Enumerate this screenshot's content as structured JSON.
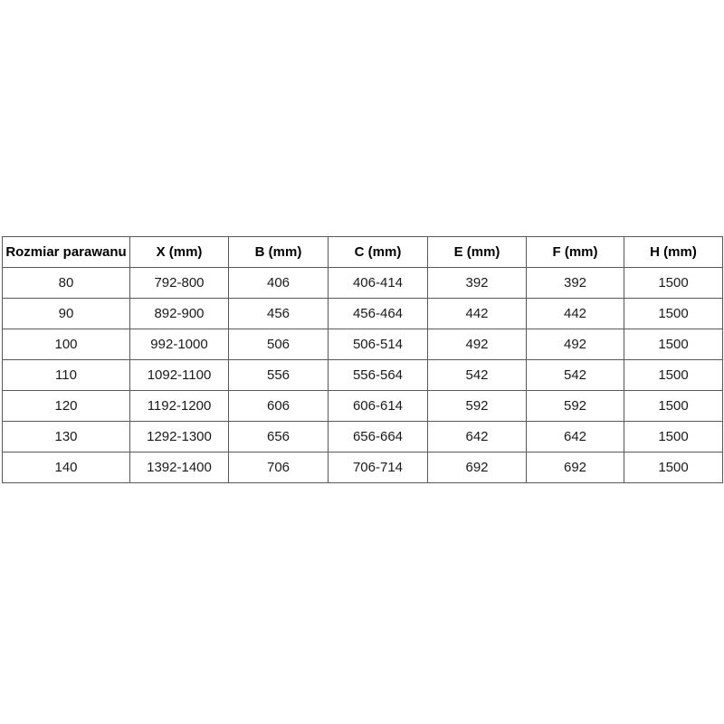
{
  "page": {
    "background_color": "#ffffff"
  },
  "table": {
    "name": "dimensions-table",
    "border_color": "#595959",
    "text_color": "#1a1a1a",
    "headers": [
      "Rozmiar parawanu",
      "X (mm)",
      "B (mm)",
      "C (mm)",
      "E (mm)",
      "F (mm)",
      "H (mm)"
    ],
    "rows": [
      [
        "80",
        "792-800",
        "406",
        "406-414",
        "392",
        "392",
        "1500"
      ],
      [
        "90",
        "892-900",
        "456",
        "456-464",
        "442",
        "442",
        "1500"
      ],
      [
        "100",
        "992-1000",
        "506",
        "506-514",
        "492",
        "492",
        "1500"
      ],
      [
        "110",
        "1092-1100",
        "556",
        "556-564",
        "542",
        "542",
        "1500"
      ],
      [
        "120",
        "1192-1200",
        "606",
        "606-614",
        "592",
        "592",
        "1500"
      ],
      [
        "130",
        "1292-1300",
        "656",
        "656-664",
        "642",
        "642",
        "1500"
      ],
      [
        "140",
        "1392-1400",
        "706",
        "706-714",
        "692",
        "692",
        "1500"
      ]
    ]
  }
}
